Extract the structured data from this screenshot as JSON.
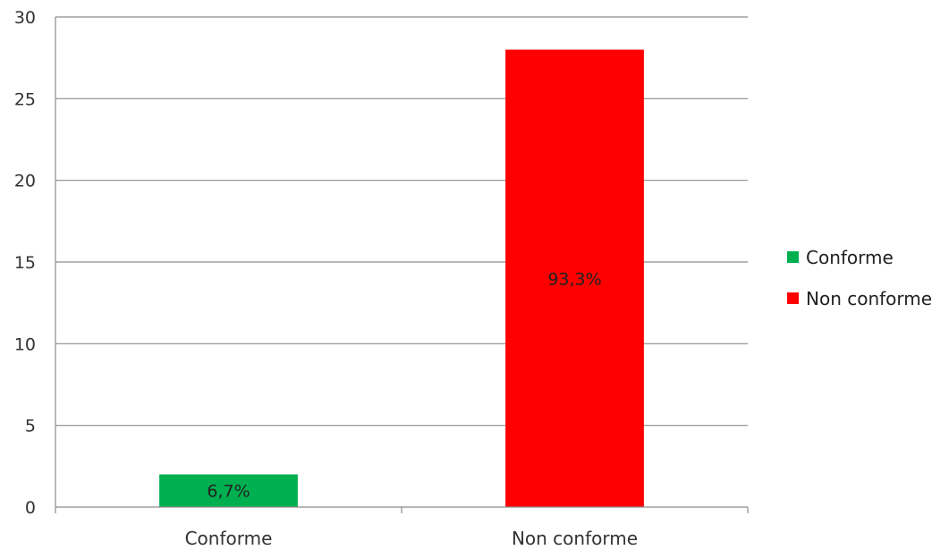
{
  "chart_data": {
    "type": "bar",
    "categories": [
      "Conforme",
      "Non conforme"
    ],
    "values": [
      2,
      28
    ],
    "data_labels": [
      "6,7%",
      "93,3%"
    ],
    "colors": [
      "#00b050",
      "#ff0000"
    ],
    "ylim": [
      0,
      30
    ],
    "yticks": [
      0,
      5,
      10,
      15,
      20,
      25,
      30
    ],
    "grid": true,
    "legend": {
      "position": "right",
      "entries": [
        {
          "label": "Conforme",
          "color": "#00b050"
        },
        {
          "label": "Non conforme",
          "color": "#ff0000"
        }
      ]
    }
  }
}
